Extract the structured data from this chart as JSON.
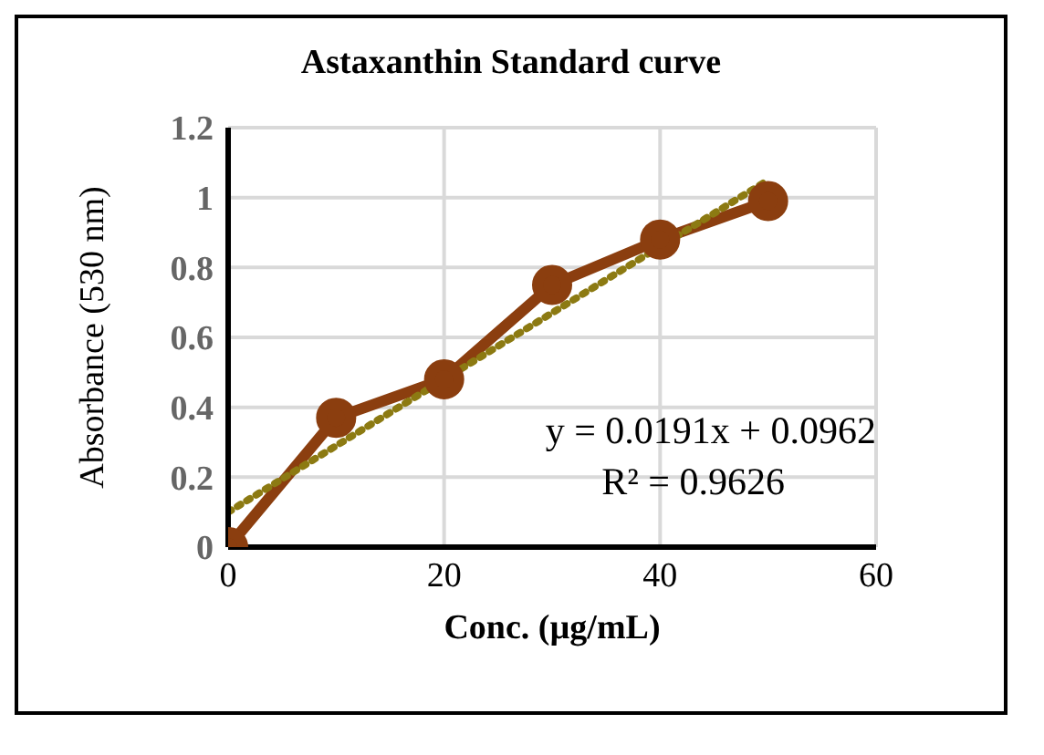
{
  "chart_data": {
    "type": "line",
    "title": "Astaxanthin Standard curve",
    "xlabel": "Conc. (µg/mL)",
    "ylabel": "Absorbance  (530 nm)",
    "x": [
      0,
      10,
      20,
      30,
      40,
      50
    ],
    "series": [
      {
        "color": "#8b3e0f",
        "values": [
          0,
          0.37,
          0.48,
          0.75,
          0.88,
          0.99
        ],
        "marker": "circle",
        "line_style": "solid"
      },
      {
        "type": "line",
        "color": "#8c7a12",
        "x": [
          0,
          50
        ],
        "values": [
          0.1,
          1.05
        ],
        "marker": "none",
        "line_style": "dotted"
      }
    ],
    "xlim": [
      0,
      60
    ],
    "xticks": [
      0,
      20,
      40,
      60
    ],
    "ylim": [
      0,
      1.2
    ],
    "yticks": [
      0,
      0.2,
      0.4,
      0.6,
      0.8,
      1,
      1.2
    ],
    "grid": true,
    "annotations": [
      "y = 0.0191x + 0.0962",
      "R² = 0.9626"
    ]
  }
}
